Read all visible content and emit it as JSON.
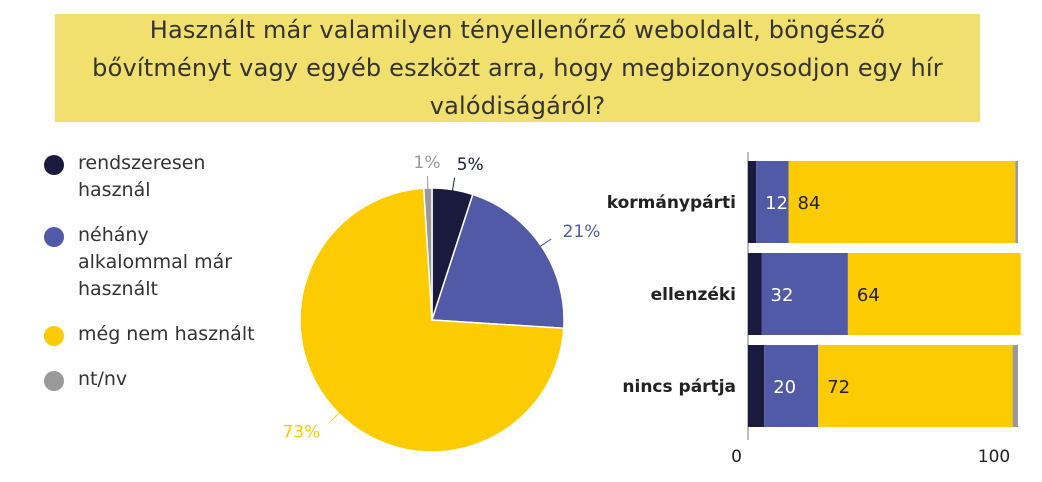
{
  "title": "Használt már valamilyen tényellenőrző weboldalt, böngésző bővítményt vagy egyéb eszközt arra, hogy megbizonyosodjon egy hír valódiságáról?",
  "legend": [
    {
      "label": "rendszeresen használ",
      "color": "#1a1a3e"
    },
    {
      "label": "néhány alkalommal már használt",
      "color": "#505aa6"
    },
    {
      "label": "még nem használt",
      "color": "#fdcb02"
    },
    {
      "label": "nt/nv",
      "color": "#999999"
    }
  ],
  "chart_data": [
    {
      "type": "pie",
      "slices": [
        {
          "name": "rendszeresen használ",
          "value": 5,
          "label": "5%",
          "color": "#1a1a3e"
        },
        {
          "name": "néhány alkalommal már használt",
          "value": 21,
          "label": "21%",
          "color": "#505aa6"
        },
        {
          "name": "még nem használt",
          "value": 73,
          "label": "73%",
          "color": "#fdcb02"
        },
        {
          "name": "nt/nv",
          "value": 1,
          "label": "1%",
          "color": "#999999"
        }
      ]
    },
    {
      "type": "bar",
      "orientation": "horizontal",
      "stacked": true,
      "categories": [
        "kormánypárti",
        "ellenzéki",
        "nincs pártja"
      ],
      "series": [
        {
          "name": "rendszeresen használ",
          "values": [
            3,
            5,
            6
          ],
          "color": "#1a1a3e"
        },
        {
          "name": "néhány alkalommal már használt",
          "values": [
            12,
            32,
            20
          ],
          "color": "#505aa6"
        },
        {
          "name": "még nem használt",
          "values": [
            84,
            64,
            72
          ],
          "color": "#fdcb02"
        },
        {
          "name": "nt/nv",
          "values": [
            1,
            0,
            2
          ],
          "color": "#999999"
        }
      ],
      "data_labels": [
        [
          "",
          "12",
          "84",
          ""
        ],
        [
          "",
          "32",
          "64",
          ""
        ],
        [
          "",
          "20",
          "72",
          ""
        ]
      ],
      "xlim": [
        0,
        100
      ],
      "xticks": [
        "0",
        "100"
      ]
    }
  ]
}
